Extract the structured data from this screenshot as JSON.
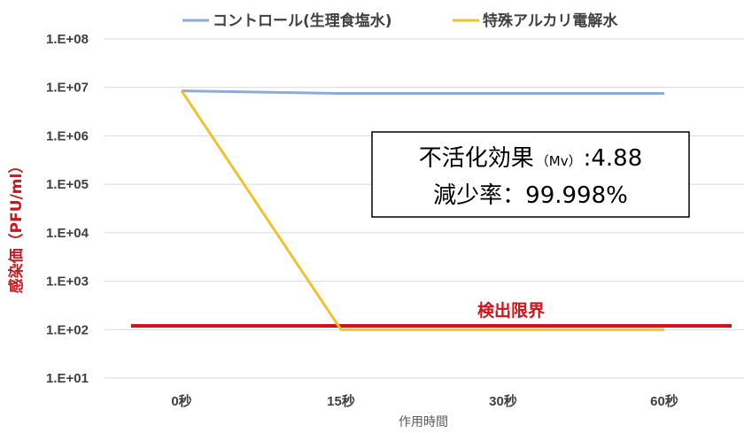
{
  "chart_data": {
    "type": "line",
    "categories": [
      "0秒",
      "15秒",
      "30秒",
      "60秒"
    ],
    "y_scale": "log",
    "ylim": [
      10,
      100000000
    ],
    "y_ticks": [
      {
        "value": 10,
        "label": "1.E+01"
      },
      {
        "value": 100,
        "label": "1.E+02"
      },
      {
        "value": 1000,
        "label": "1.E+03"
      },
      {
        "value": 10000,
        "label": "1.E+04"
      },
      {
        "value": 100000,
        "label": "1.E+05"
      },
      {
        "value": 1000000,
        "label": "1.E+06"
      },
      {
        "value": 10000000,
        "label": "1.E+07"
      },
      {
        "value": 100000000,
        "label": "1.E+08"
      }
    ],
    "xlabel": "作用時間",
    "ylabel": "感染価（PFU/ml）",
    "grid": true,
    "legend_position": "top",
    "series": [
      {
        "name": "コントロール(生理食塩水)",
        "color": "#8eaadb",
        "values": [
          8500000,
          7500000,
          7500000,
          7500000
        ]
      },
      {
        "name": "特殊アルカリ電解水",
        "color": "#f2c12e",
        "values": [
          8500000,
          100,
          100,
          100
        ]
      }
    ],
    "detection_limit": {
      "label": "検出限界",
      "value": 120,
      "color": "#d0141b"
    },
    "annotation": {
      "line1_main": "不活化効果",
      "line1_small": "（Mv）",
      "line1_value": ":4.88",
      "line2": "減少率：99.998%"
    }
  }
}
